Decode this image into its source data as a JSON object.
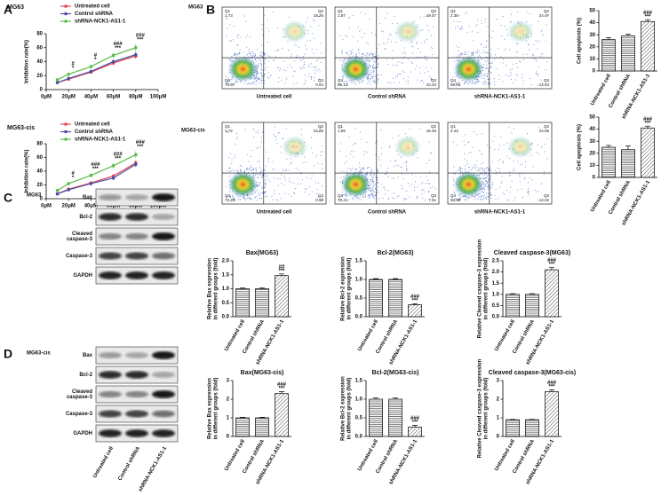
{
  "panel_labels": [
    "A",
    "B",
    "C",
    "D"
  ],
  "chart_data": [
    {
      "type": "line",
      "title": "MG63",
      "ylabel": "Inhibition rate(%)",
      "x": [
        10,
        20,
        40,
        60,
        80
      ],
      "xlim": [
        0,
        100
      ],
      "xticks": [
        {
          "value": 0,
          "label": "0μM"
        },
        {
          "value": 20,
          "label": "20μM"
        },
        {
          "value": 40,
          "label": "40μM"
        },
        {
          "value": 60,
          "label": "60μM"
        },
        {
          "value": 80,
          "label": "80μM"
        },
        {
          "value": 100,
          "label": "100μM"
        }
      ],
      "ylim": [
        0,
        80
      ],
      "yticks": [
        0,
        20,
        40,
        60,
        80
      ],
      "series": [
        {
          "name": "Untreated cell",
          "color": "#e8474f",
          "values": [
            10,
            15,
            25,
            38,
            48
          ],
          "errors": [
            1,
            1.5,
            2,
            3,
            4
          ]
        },
        {
          "name": "Control shRNA",
          "color": "#4a4fa8",
          "values": [
            10,
            16,
            26,
            40,
            50
          ],
          "errors": [
            1,
            1.5,
            2,
            3,
            4
          ]
        },
        {
          "name": "shRNA-NCK1-AS1-1",
          "color": "#5bbd4a",
          "values": [
            14,
            22,
            33,
            49,
            60
          ],
          "errors": [
            1.5,
            2,
            3,
            4,
            5
          ]
        }
      ],
      "significance": [
        null,
        [
          "#",
          "*"
        ],
        [
          "#",
          "*"
        ],
        [
          "###",
          "***"
        ],
        [
          "###",
          "***"
        ]
      ]
    },
    {
      "type": "line",
      "title": "MG63-cis",
      "ylabel": "Inhibition rate(%)",
      "x": [
        10,
        20,
        40,
        60,
        80
      ],
      "xlim": [
        0,
        100
      ],
      "xticks": [
        {
          "value": 0,
          "label": "0μM"
        },
        {
          "value": 20,
          "label": "20μM"
        },
        {
          "value": 40,
          "label": "40μM"
        },
        {
          "value": 60,
          "label": "60μM"
        },
        {
          "value": 80,
          "label": "80μM"
        },
        {
          "value": 100,
          "label": "100μM"
        }
      ],
      "ylim": [
        0,
        80
      ],
      "yticks": [
        0,
        20,
        40,
        60,
        80
      ],
      "series": [
        {
          "name": "Untreated cell",
          "color": "#e8474f",
          "values": [
            7,
            14,
            23,
            33,
            52
          ],
          "errors": [
            1,
            1.5,
            2,
            3,
            4
          ]
        },
        {
          "name": "Control shRNA",
          "color": "#4a4fa8",
          "values": [
            7,
            13,
            22,
            30,
            50
          ],
          "errors": [
            1,
            1.5,
            2,
            3,
            4
          ]
        },
        {
          "name": "shRNA-NCK1-AS1-1",
          "color": "#5bbd4a",
          "values": [
            12,
            22,
            34,
            48,
            64
          ],
          "errors": [
            1.5,
            2,
            3,
            4,
            5
          ]
        }
      ],
      "significance": [
        null,
        [
          "#",
          "*"
        ],
        [
          "###",
          "***"
        ],
        [
          "###",
          "***"
        ],
        [
          "###",
          "***"
        ]
      ]
    },
    {
      "type": "bar",
      "ylabel": "Cell apoptosis (%)",
      "categories": [
        "Untreated cell",
        "Control shRNA",
        "shRNA-NCK1-AS1-1"
      ],
      "values": [
        26,
        29,
        41
      ],
      "errors": [
        1.5,
        1.5,
        1.5
      ],
      "ylim": [
        0,
        50
      ],
      "yticks": [
        0,
        10,
        20,
        30,
        40,
        50
      ],
      "patterns": [
        "horizontal",
        "horizontal",
        "diagonal"
      ],
      "significance": [
        null,
        null,
        [
          "###",
          "***"
        ]
      ]
    },
    {
      "type": "bar",
      "ylabel": "Cell apoptosis (%)",
      "categories": [
        "Untreated cell",
        "Control shRNA",
        "shRNA-NCK1-AS1-1"
      ],
      "values": [
        25,
        23,
        41
      ],
      "errors": [
        1.5,
        3,
        1.5
      ],
      "ylim": [
        0,
        50
      ],
      "yticks": [
        0,
        10,
        20,
        30,
        40,
        50
      ],
      "patterns": [
        "horizontal",
        "horizontal",
        "diagonal"
      ],
      "significance": [
        null,
        null,
        [
          "###",
          "***"
        ]
      ]
    },
    {
      "type": "bar",
      "title": "Bax(MG63)",
      "ylabel": [
        "Relative Bax expression",
        "in different groups (fold)"
      ],
      "categories": [
        "Untreated cell",
        "Control shRNA",
        "shRNA-NCK1-AS1-1"
      ],
      "values": [
        1,
        1,
        1.47
      ],
      "errors": [
        0.03,
        0.03,
        0.06
      ],
      "ylim": [
        0,
        2
      ],
      "yticks": [
        {
          "value": 0,
          "label": "0.0"
        },
        {
          "value": 0.5,
          "label": "0.5"
        },
        {
          "value": 1,
          "label": "1.0"
        },
        {
          "value": 1.5,
          "label": "1.5"
        },
        {
          "value": 2,
          "label": "2.0"
        }
      ],
      "patterns": [
        "horizontal",
        "horizontal",
        "diagonal"
      ],
      "significance": [
        null,
        null,
        [
          "##",
          "***"
        ]
      ]
    },
    {
      "type": "bar",
      "title": "Bcl-2(MG63)",
      "ylabel": [
        "Relative Bcl-2 expression",
        "in different groups (fold)"
      ],
      "categories": [
        "Untreated cell",
        "Control shRNA",
        "shRNA-NCK1-AS1-1"
      ],
      "values": [
        1,
        1,
        0.32
      ],
      "errors": [
        0.02,
        0.02,
        0.03
      ],
      "ylim": [
        0,
        1.5
      ],
      "yticks": [
        {
          "value": 0,
          "label": "0.0"
        },
        {
          "value": 0.5,
          "label": "0.5"
        },
        {
          "value": 1,
          "label": "1.0"
        },
        {
          "value": 1.5,
          "label": "1.5"
        }
      ],
      "patterns": [
        "horizontal",
        "horizontal",
        "diagonal"
      ],
      "significance": [
        null,
        null,
        [
          "###",
          "***"
        ]
      ]
    },
    {
      "type": "bar",
      "title": "Cleaved caspase-3(MG63)",
      "ylabel": [
        "Relative Cleaved caspase-3 expression",
        "in different groups (fold)"
      ],
      "categories": [
        "Untreated cell",
        "Control shRNA",
        "shRNA-NCK1-AS1-1"
      ],
      "values": [
        1,
        1,
        2.1
      ],
      "errors": [
        0.03,
        0.03,
        0.1
      ],
      "ylim": [
        0,
        2.5
      ],
      "yticks": [
        {
          "value": 0,
          "label": "0.0"
        },
        {
          "value": 0.5,
          "label": "0.5"
        },
        {
          "value": 1,
          "label": "1.0"
        },
        {
          "value": 1.5,
          "label": "1.5"
        },
        {
          "value": 2,
          "label": "2.0"
        },
        {
          "value": 2.5,
          "label": "2.5"
        }
      ],
      "patterns": [
        "horizontal",
        "horizontal",
        "diagonal"
      ],
      "significance": [
        null,
        null,
        [
          "###",
          "***"
        ]
      ]
    },
    {
      "type": "bar",
      "title": "Bax(MG63-cis)",
      "ylabel": [
        "Relative Bax expression",
        "in different groups (fold)"
      ],
      "categories": [
        "Untreated cell",
        "Control shRNA",
        "shRNA-NCK1-AS1-1"
      ],
      "values": [
        1,
        1,
        2.3
      ],
      "errors": [
        0.03,
        0.03,
        0.1
      ],
      "ylim": [
        0,
        3
      ],
      "yticks": [
        0,
        1,
        2,
        3
      ],
      "patterns": [
        "horizontal",
        "horizontal",
        "diagonal"
      ],
      "significance": [
        null,
        null,
        [
          "###",
          "***"
        ]
      ]
    },
    {
      "type": "bar",
      "title": "Bcl-2(MG63-cis)",
      "ylabel": [
        "Relative Bcl-2 expression",
        "in different groups (fold)"
      ],
      "categories": [
        "Untreated cell",
        "Control shRNA",
        "shRNA-NCK1-AS1-1"
      ],
      "values": [
        1,
        1,
        0.25
      ],
      "errors": [
        0.03,
        0.03,
        0.05
      ],
      "ylim": [
        0,
        1.5
      ],
      "yticks": [
        {
          "value": 0,
          "label": "0.0"
        },
        {
          "value": 0.5,
          "label": "0.5"
        },
        {
          "value": 1,
          "label": "1.0"
        },
        {
          "value": 1.5,
          "label": "1.5"
        }
      ],
      "patterns": [
        "horizontal",
        "horizontal",
        "diagonal"
      ],
      "significance": [
        null,
        null,
        [
          "###",
          "***"
        ]
      ]
    },
    {
      "type": "bar",
      "title": "Cleaved caspase-3(MG63-cis)",
      "ylabel": [
        "Relative Cleaved caspase-3 expression",
        "in different groups (fold)"
      ],
      "categories": [
        "Untreated cell",
        "Control shRNA",
        "shRNA-NCK1-AS1-1"
      ],
      "values": [
        0.9,
        0.9,
        2.4
      ],
      "errors": [
        0.02,
        0.02,
        0.1
      ],
      "ylim": [
        0,
        3
      ],
      "yticks": [
        0,
        1,
        2,
        3
      ],
      "patterns": [
        "horizontal",
        "horizontal",
        "diagonal"
      ],
      "significance": [
        null,
        null,
        [
          "###",
          "***"
        ]
      ]
    }
  ],
  "flow": [
    {
      "title": "MG63",
      "plots": [
        {
          "label": "Untreated cell",
          "quadrants": [
            {
              "name": "Q1",
              "value": 1.73
            },
            {
              "name": "Q2",
              "value": 18.26
            },
            {
              "name": "Q4",
              "value": 79.37
            },
            {
              "name": "Q3",
              "value": 0.64
            }
          ]
        },
        {
          "label": "Control shRNA",
          "quadrants": [
            {
              "name": "Q1",
              "value": 1.87
            },
            {
              "name": "Q2",
              "value": 19.57
            },
            {
              "name": "Q4",
              "value": 68.13
            },
            {
              "name": "Q3",
              "value": 10.43
            }
          ]
        },
        {
          "label": "shRNA-NCK1-AS1-1",
          "quadrants": [
            {
              "name": "Q1",
              "value": 2.35
            },
            {
              "name": "Q2",
              "value": 24.47
            },
            {
              "name": "Q4",
              "value": 58.65
            },
            {
              "name": "Q3",
              "value": 14.53
            }
          ]
        }
      ]
    },
    {
      "title": "MG63-cis",
      "plots": [
        {
          "label": "Untreated cell",
          "quadrants": [
            {
              "name": "Q1",
              "value": 1.72
            },
            {
              "name": "Q2",
              "value": 24.68
            },
            {
              "name": "Q4",
              "value": 73.28
            },
            {
              "name": "Q3",
              "value": 0.32
            }
          ]
        },
        {
          "label": "Control shRNA",
          "quadrants": [
            {
              "name": "Q1",
              "value": 1.59
            },
            {
              "name": "Q2",
              "value": 15.49
            },
            {
              "name": "Q4",
              "value": 75.41
            },
            {
              "name": "Q3",
              "value": 7.51
            }
          ]
        },
        {
          "label": "shRNA-NCK1-AS1-1",
          "quadrants": [
            {
              "name": "Q1",
              "value": 2.41
            },
            {
              "name": "Q2",
              "value": 24.59
            },
            {
              "name": "Q4",
              "value": 58.98
            },
            {
              "name": "Q3",
              "value": 14.02
            }
          ]
        }
      ]
    }
  ],
  "blots": [
    {
      "title": "MG63",
      "rows": [
        [
          "Bax"
        ],
        [
          "Bcl-2"
        ],
        [
          "Cleaved",
          "caspase-3"
        ],
        [
          "Caspase-3"
        ],
        [
          "GAPDH"
        ]
      ]
    },
    {
      "title": "MG63-cis",
      "rows": [
        [
          "Bax"
        ],
        [
          "Bcl-2"
        ],
        [
          "Cleaved",
          "caspase-3"
        ],
        [
          "Caspase-3"
        ],
        [
          "GAPDH"
        ]
      ],
      "lanes": [
        "Untreated cell",
        "Control shRNA",
        "shRNA-NCK1-AS1-1"
      ]
    }
  ]
}
